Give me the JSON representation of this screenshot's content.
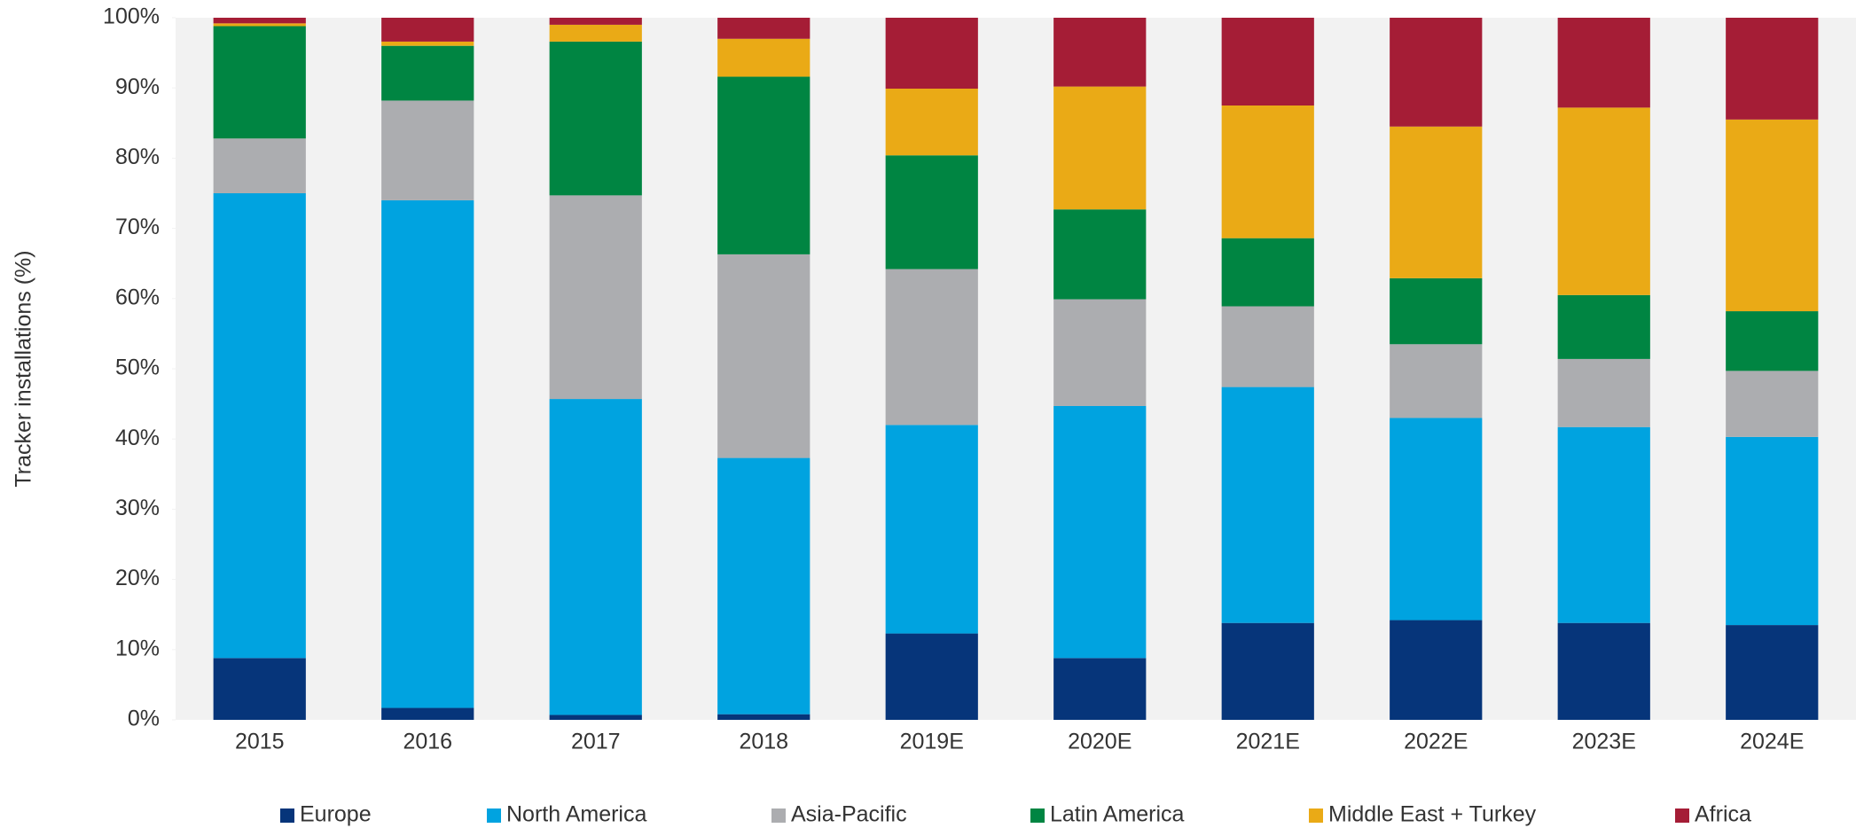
{
  "chart_data": {
    "type": "stacked_bar",
    "y_label": "Tracker installations (%)",
    "categories": [
      "2015",
      "2016",
      "2017",
      "2018",
      "2019E",
      "2020E",
      "2021E",
      "2022E",
      "2023E",
      "2024E"
    ],
    "series": [
      {
        "name": "Europe",
        "color": "#06357a",
        "values": [
          8.8,
          1.7,
          0.7,
          0.8,
          12.3,
          8.8,
          13.8,
          14.2,
          13.8,
          13.5
        ]
      },
      {
        "name": "North America",
        "color": "#00a3e0",
        "values": [
          66.2,
          72.3,
          45.0,
          36.5,
          29.7,
          35.9,
          33.6,
          28.8,
          27.9,
          26.8
        ]
      },
      {
        "name": "Asia-Pacific",
        "color": "#acadb0",
        "values": [
          7.8,
          14.2,
          29.0,
          29.0,
          22.2,
          15.2,
          11.5,
          10.5,
          9.7,
          9.4
        ]
      },
      {
        "name": "Latin America",
        "color": "#008542",
        "values": [
          16.0,
          7.8,
          21.9,
          25.3,
          16.2,
          12.8,
          9.7,
          9.4,
          9.1,
          8.5
        ]
      },
      {
        "name": "Middle East + Turkey",
        "color": "#eaaa16",
        "values": [
          0.4,
          0.6,
          2.4,
          5.4,
          9.5,
          17.5,
          18.9,
          21.6,
          26.7,
          27.3
        ]
      },
      {
        "name": "Africa",
        "color": "#a51d36",
        "values": [
          0.8,
          3.4,
          1.0,
          3.0,
          10.1,
          9.8,
          12.5,
          15.5,
          12.8,
          14.5
        ]
      }
    ],
    "ylim": [
      0,
      100
    ],
    "yticks": [
      {
        "value": 0,
        "label": "0%"
      },
      {
        "value": 10,
        "label": "10%"
      },
      {
        "value": 20,
        "label": "20%"
      },
      {
        "value": 30,
        "label": "30%"
      },
      {
        "value": 40,
        "label": "40%"
      },
      {
        "value": 50,
        "label": "50%"
      },
      {
        "value": 60,
        "label": "60%"
      },
      {
        "value": 70,
        "label": "70%"
      },
      {
        "value": 80,
        "label": "80%"
      },
      {
        "value": 90,
        "label": "90%"
      },
      {
        "value": 100,
        "label": "100%"
      }
    ],
    "legend": "bottom"
  }
}
